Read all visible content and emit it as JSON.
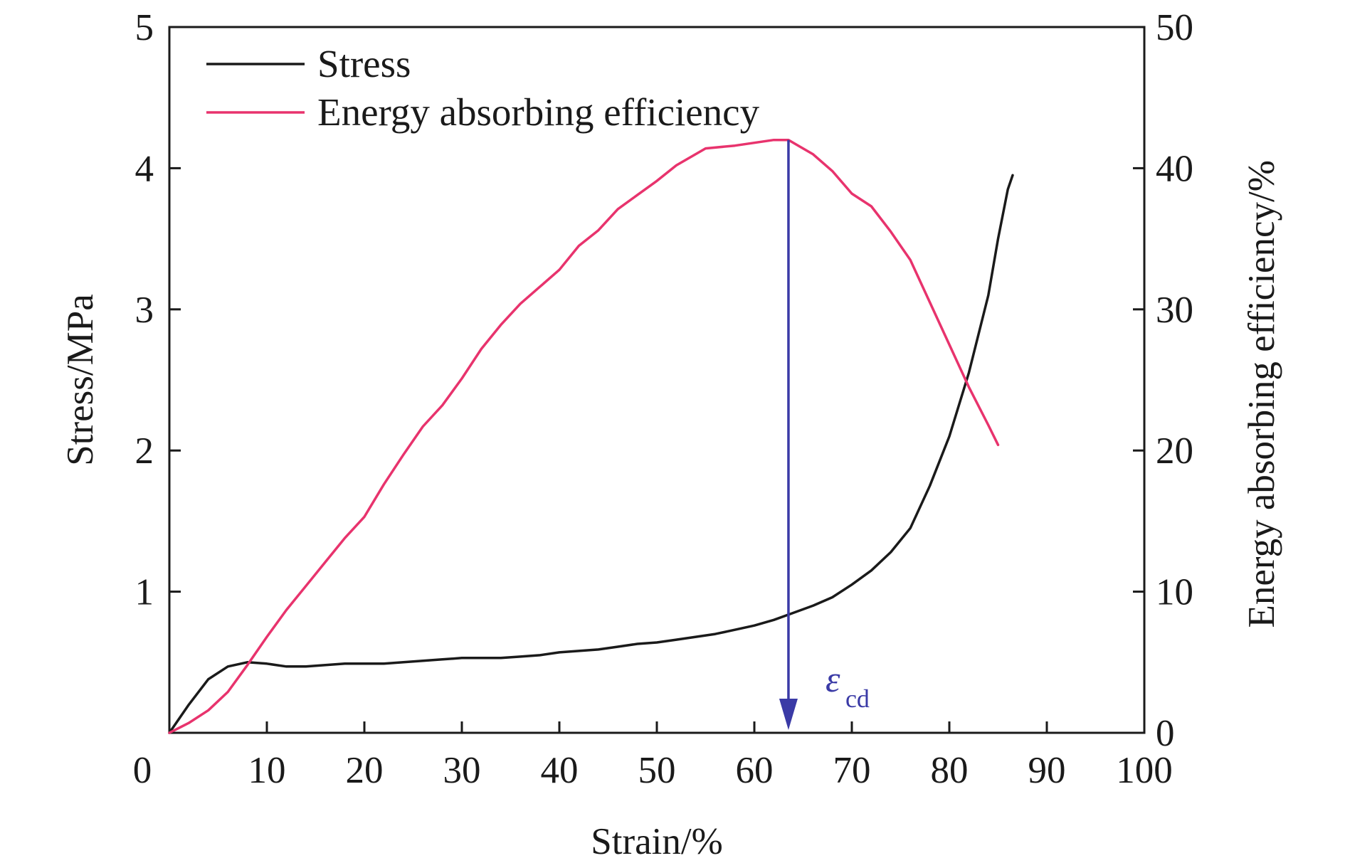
{
  "chart_data": {
    "type": "line",
    "title": "",
    "xlabel": "Strain/%",
    "ylabel": "Stress/MPa",
    "y2label": "Energy absorbing efficiency/%",
    "xlim": [
      0,
      100
    ],
    "ylim": [
      0,
      5
    ],
    "y2lim": [
      0,
      50
    ],
    "xticks": [
      "0",
      "10",
      "20",
      "30",
      "40",
      "50",
      "60",
      "70",
      "80",
      "90",
      "100"
    ],
    "yticks": [
      "1",
      "2",
      "3",
      "4",
      "5"
    ],
    "y2ticks": [
      "0",
      "10",
      "20",
      "30",
      "40",
      "50"
    ],
    "grid": false,
    "legend_position": "top-left",
    "series": [
      {
        "name": "Stress",
        "axis": "left",
        "color": "#1a1a1a",
        "x": [
          0,
          2,
          4,
          6,
          8,
          10,
          12,
          14,
          16,
          18,
          20,
          22,
          24,
          26,
          28,
          30,
          32,
          34,
          36,
          38,
          40,
          42,
          44,
          46,
          48,
          50,
          52,
          54,
          56,
          58,
          60,
          62,
          64,
          66,
          68,
          70,
          72,
          74,
          76,
          78,
          80,
          82,
          84,
          85,
          86,
          86.5
        ],
        "values": [
          0,
          0.2,
          0.38,
          0.47,
          0.5,
          0.49,
          0.47,
          0.47,
          0.48,
          0.49,
          0.49,
          0.49,
          0.5,
          0.51,
          0.52,
          0.53,
          0.53,
          0.53,
          0.54,
          0.55,
          0.57,
          0.58,
          0.59,
          0.61,
          0.63,
          0.64,
          0.66,
          0.68,
          0.7,
          0.73,
          0.76,
          0.8,
          0.85,
          0.9,
          0.96,
          1.05,
          1.15,
          1.28,
          1.45,
          1.75,
          2.1,
          2.55,
          3.1,
          3.5,
          3.85,
          3.95
        ]
      },
      {
        "name": "Energy absorbing efficiency",
        "axis": "right",
        "color": "#e8336d",
        "x": [
          0,
          2,
          4,
          6,
          8,
          10,
          12,
          14,
          16,
          18,
          20,
          22,
          24,
          26,
          28,
          30,
          32,
          34,
          36,
          38,
          40,
          42,
          44,
          46,
          48,
          50,
          52,
          55,
          58,
          60,
          62,
          63.5,
          64.5,
          66,
          68,
          70,
          72,
          74,
          76,
          78,
          80,
          82,
          84,
          85
        ],
        "values": [
          0,
          0.7,
          1.6,
          2.9,
          4.8,
          6.8,
          8.7,
          10.4,
          12.1,
          13.8,
          15.3,
          17.6,
          19.7,
          21.7,
          23.2,
          25.1,
          27.2,
          28.9,
          30.4,
          31.6,
          32.8,
          34.5,
          35.6,
          37.1,
          38.1,
          39.1,
          40.2,
          41.4,
          41.6,
          41.8,
          42.0,
          42.0,
          41.6,
          41.0,
          39.8,
          38.2,
          37.3,
          35.5,
          33.5,
          30.5,
          27.5,
          24.5,
          21.8,
          20.4
        ]
      }
    ],
    "annotations": [
      {
        "type": "arrow",
        "label": "ε",
        "subscript": "cd",
        "x": 63.5,
        "color": "#3a3aa6"
      }
    ]
  }
}
